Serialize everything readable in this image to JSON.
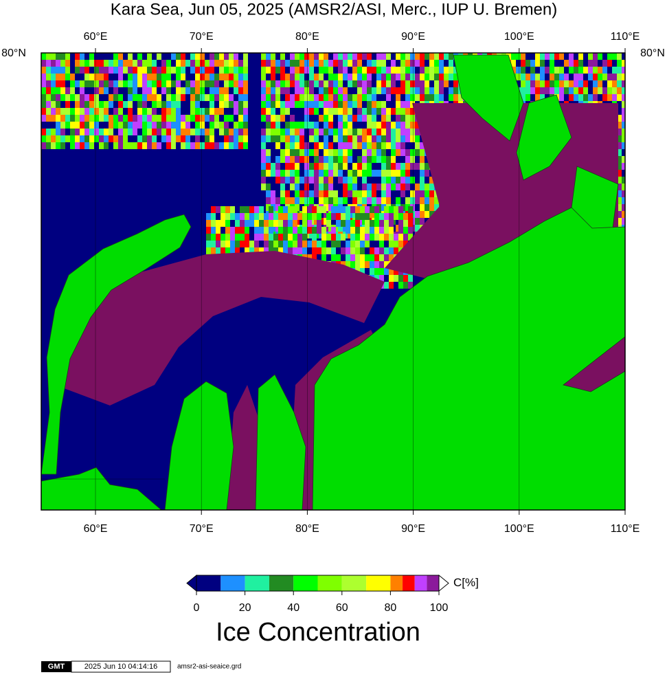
{
  "title": "Kara Sea, Jun 05, 2025 (AMSR2/ASI, Merc., IUP U. Bremen)",
  "map": {
    "lon_ticks": [
      "60°E",
      "70°E",
      "80°E",
      "90°E",
      "100°E",
      "110°E"
    ],
    "lat_label": "80°N"
  },
  "colorbar": {
    "unit": "C[%]",
    "label": "Ice Concentration",
    "ticks": [
      0,
      20,
      40,
      60,
      80,
      100
    ],
    "bins": [
      0,
      10,
      20,
      30,
      40,
      50,
      60,
      70,
      80,
      85,
      90,
      95,
      100
    ],
    "colors": [
      "#000080",
      "#1e90ff",
      "#20f0a0",
      "#228b22",
      "#00ff00",
      "#7fff00",
      "#adff2f",
      "#ffff00",
      "#ff8000",
      "#ff0000",
      "#c040ff",
      "#8b1a9b"
    ],
    "below_color": "#000080",
    "above_color": "#ffffff"
  },
  "footer": {
    "logo": "GMT",
    "timestamp": "2025 Jun 10 04:14:16",
    "file": "amsr2-asi-seaice.grd"
  }
}
